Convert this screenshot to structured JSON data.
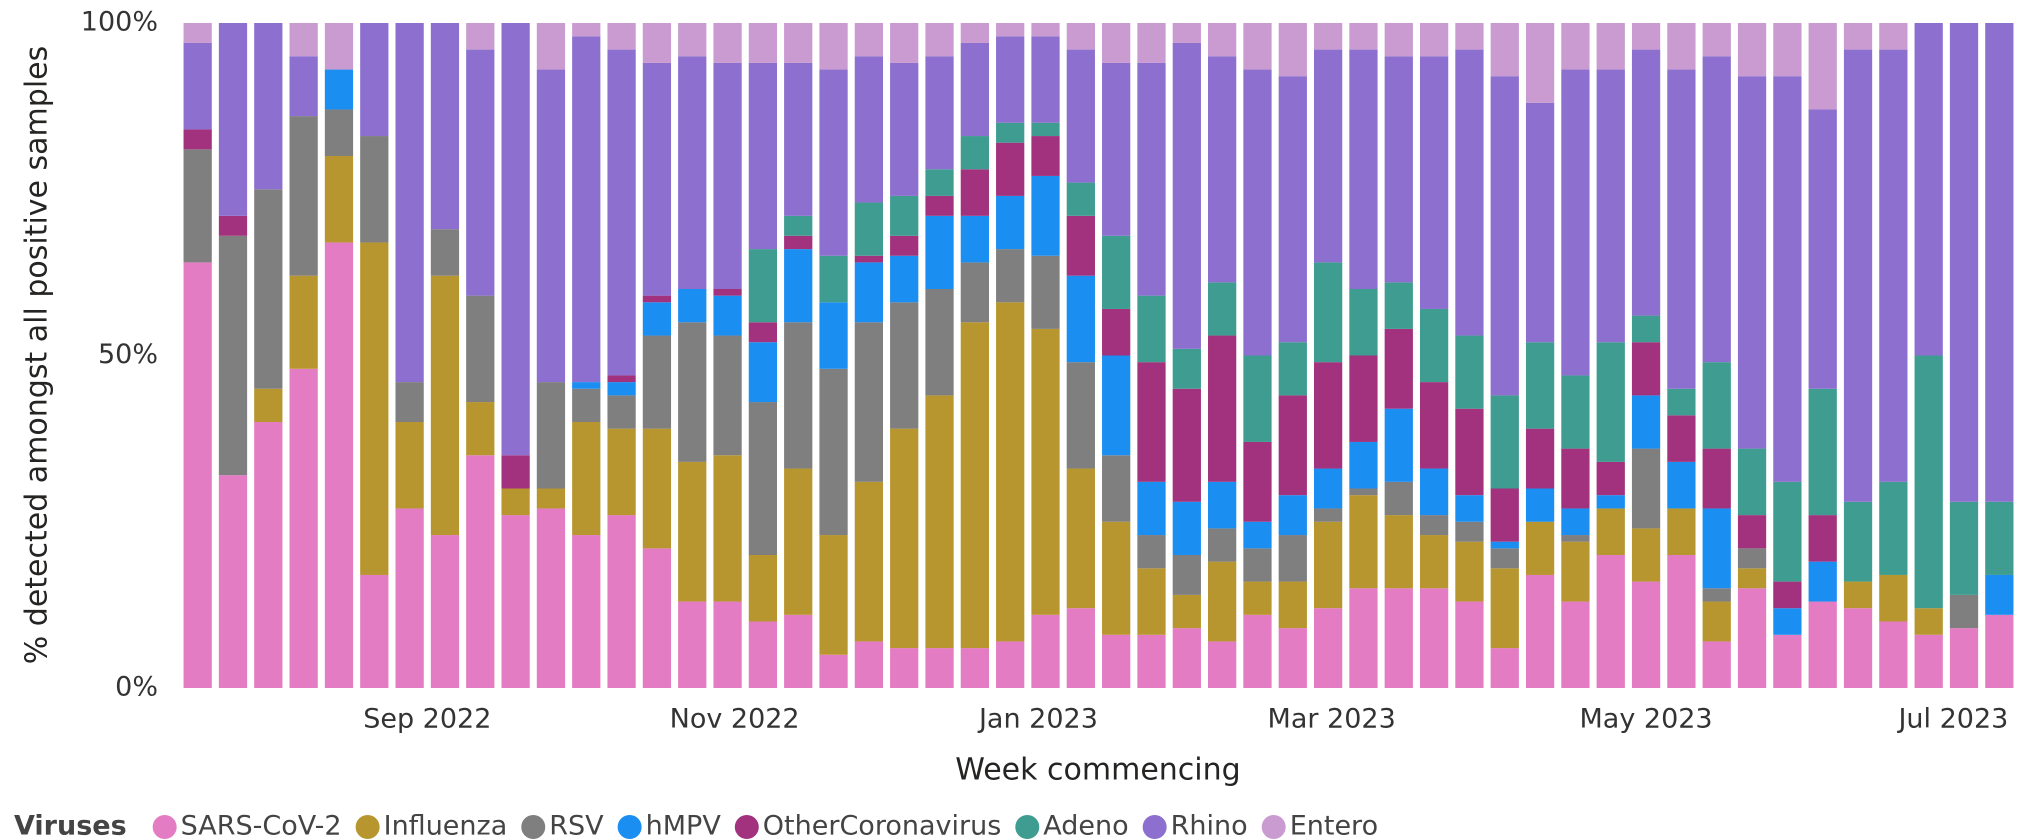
{
  "chart_data": {
    "type": "bar",
    "stacked": true,
    "x_label": "Week commencing",
    "y_label": "% detected amongst all positive samples",
    "legend_title": "Viruses",
    "legend_position": "bottom-left",
    "categories": [
      null,
      null,
      null,
      null,
      null,
      null,
      null,
      null,
      null,
      null,
      null,
      null,
      null,
      null,
      null,
      null,
      null,
      null,
      null,
      null,
      null,
      null,
      null,
      null,
      null,
      null,
      null,
      null,
      null,
      null,
      null,
      null,
      null,
      null,
      null,
      null,
      null,
      null,
      null,
      null,
      null,
      null,
      null,
      null,
      null,
      null,
      null,
      null,
      null,
      null,
      null,
      null
    ],
    "xlim": [
      -0.5,
      51.5
    ],
    "xticks": [
      {
        "value": 6.5,
        "label": "Sep 2022"
      },
      {
        "value": 15.2,
        "label": "Nov 2022"
      },
      {
        "value": 23.8,
        "label": "Jan 2023"
      },
      {
        "value": 32.1,
        "label": "Mar 2023"
      },
      {
        "value": 41.0,
        "label": "May 2023"
      },
      {
        "value": 49.7,
        "label": "Jul 2023"
      }
    ],
    "ylim": [
      0,
      100
    ],
    "yticks": [
      {
        "value": 0,
        "label": "0%"
      },
      {
        "value": 50,
        "label": "50%"
      },
      {
        "value": 100,
        "label": "100%"
      }
    ],
    "grid": false,
    "series": [
      {
        "name": "SARS-CoV-2",
        "color": "#e47cc4",
        "values": [
          64,
          32,
          40,
          48,
          67,
          17,
          27,
          23,
          35,
          26,
          27,
          23,
          26,
          21,
          13,
          13,
          10,
          11,
          5,
          7,
          6,
          6,
          6,
          7,
          11,
          12,
          8,
          8,
          9,
          7,
          11,
          9,
          12,
          15,
          15,
          15,
          13,
          6,
          17,
          13,
          20,
          16,
          20,
          7,
          15,
          8,
          13,
          12,
          10,
          8,
          9,
          11
        ]
      },
      {
        "name": "Influenza",
        "color": "#b7962f",
        "values": [
          0,
          0,
          5,
          14,
          13,
          50,
          13,
          39,
          8,
          4,
          3,
          17,
          13,
          18,
          21,
          22,
          10,
          22,
          18,
          24,
          33,
          38,
          49,
          51,
          43,
          21,
          17,
          10,
          5,
          12,
          5,
          7,
          13,
          14,
          11,
          8,
          9,
          12,
          8,
          9,
          7,
          8,
          7,
          6,
          3,
          0,
          0,
          4,
          7,
          4,
          0,
          0
        ]
      },
      {
        "name": "RSV",
        "color": "#7f7f7f",
        "values": [
          17,
          36,
          30,
          24,
          7,
          16,
          6,
          7,
          16,
          0,
          16,
          5,
          5,
          14,
          21,
          18,
          23,
          22,
          25,
          24,
          19,
          16,
          9,
          8,
          11,
          16,
          10,
          5,
          6,
          5,
          5,
          7,
          2,
          1,
          5,
          3,
          3,
          3,
          0,
          1,
          0,
          12,
          0,
          2,
          3,
          0,
          0,
          0,
          0,
          0,
          5,
          0
        ]
      },
      {
        "name": "hMPV",
        "color": "#1b8ef2",
        "values": [
          0,
          0,
          0,
          0,
          6,
          0,
          0,
          0,
          0,
          0,
          0,
          1,
          2,
          5,
          5,
          6,
          9,
          11,
          10,
          9,
          7,
          11,
          7,
          8,
          12,
          13,
          15,
          8,
          8,
          7,
          4,
          6,
          6,
          7,
          11,
          7,
          4,
          1,
          5,
          4,
          2,
          8,
          7,
          12,
          0,
          4,
          6,
          0,
          0,
          0,
          0,
          6
        ]
      },
      {
        "name": "OtherCoronavirus",
        "color": "#a2327d",
        "values": [
          3,
          3,
          0,
          0,
          0,
          0,
          0,
          0,
          0,
          5,
          0,
          0,
          1,
          1,
          0,
          1,
          3,
          2,
          0,
          1,
          3,
          3,
          7,
          8,
          6,
          9,
          7,
          18,
          17,
          22,
          12,
          15,
          16,
          13,
          12,
          13,
          13,
          8,
          9,
          9,
          5,
          8,
          7,
          9,
          5,
          4,
          7,
          0,
          0,
          0,
          0,
          0
        ]
      },
      {
        "name": "Adeno",
        "color": "#3f9c90",
        "values": [
          0,
          0,
          0,
          0,
          0,
          0,
          0,
          0,
          0,
          0,
          0,
          0,
          0,
          0,
          0,
          0,
          11,
          3,
          7,
          8,
          6,
          4,
          5,
          3,
          2,
          5,
          11,
          10,
          6,
          8,
          13,
          8,
          15,
          10,
          7,
          11,
          11,
          14,
          13,
          11,
          18,
          4,
          4,
          13,
          10,
          15,
          19,
          12,
          14,
          38,
          14,
          11
        ]
      },
      {
        "name": "Rhino",
        "color": "#8c6fcf",
        "values": [
          13,
          29,
          25,
          9,
          0,
          17,
          54,
          31,
          37,
          65,
          47,
          52,
          49,
          35,
          35,
          34,
          28,
          23,
          28,
          22,
          20,
          17,
          14,
          13,
          13,
          20,
          26,
          35,
          46,
          34,
          43,
          40,
          32,
          36,
          34,
          38,
          43,
          48,
          36,
          46,
          41,
          40,
          48,
          46,
          56,
          61,
          42,
          68,
          65,
          50,
          72,
          72
        ]
      },
      {
        "name": "Entero",
        "color": "#c99bd1",
        "values": [
          3,
          0,
          0,
          5,
          7,
          0,
          0,
          0,
          4,
          0,
          7,
          2,
          4,
          6,
          5,
          6,
          6,
          6,
          7,
          5,
          6,
          5,
          3,
          2,
          2,
          4,
          6,
          6,
          3,
          5,
          7,
          8,
          4,
          4,
          5,
          5,
          4,
          8,
          12,
          7,
          7,
          4,
          7,
          5,
          8,
          8,
          13,
          4,
          4,
          0,
          0,
          0
        ]
      }
    ]
  }
}
